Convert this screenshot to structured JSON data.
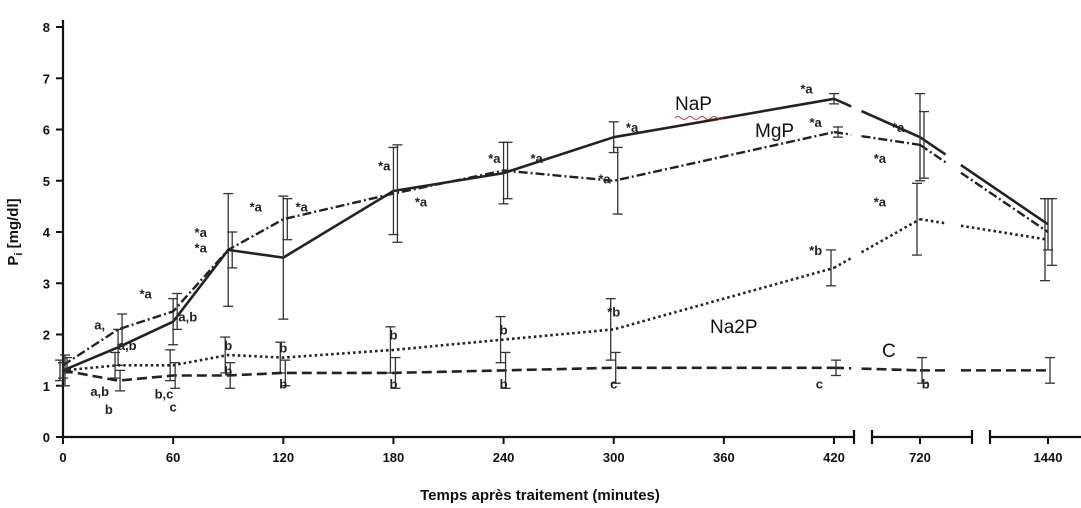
{
  "chart_data": {
    "type": "line",
    "xlabel": "Temps après traitement (minutes)",
    "ylabel_main": "P",
    "ylabel_sub": "i",
    "ylabel_rest": " [mg/dl]",
    "ylim": [
      0,
      8
    ],
    "y_ticks": [
      "0",
      "1",
      "2",
      "3",
      "4",
      "5",
      "6",
      "7",
      "8"
    ],
    "x_ticks": [
      "0",
      "60",
      "120",
      "180",
      "240",
      "300",
      "360",
      "420",
      "720",
      "1440"
    ],
    "axis_breaks": [
      "420-720",
      "720-1440"
    ],
    "grid": false,
    "legend": "inline labels",
    "series": [
      {
        "name": "NaP",
        "style": "solid",
        "x": [
          0,
          30,
          60,
          90,
          120,
          180,
          240,
          300,
          420,
          720,
          1440
        ],
        "y": [
          1.3,
          1.75,
          2.25,
          3.65,
          3.5,
          4.8,
          5.15,
          5.85,
          6.6,
          5.85,
          4.15
        ],
        "err": [
          0.15,
          0.35,
          0.45,
          1.1,
          1.2,
          0.85,
          0.6,
          0.3,
          0.1,
          0.85,
          0.5
        ]
      },
      {
        "name": "MgP",
        "style": "dash-dot",
        "x": [
          0,
          30,
          60,
          90,
          120,
          180,
          240,
          300,
          420,
          720,
          1440
        ],
        "y": [
          1.4,
          2.1,
          2.45,
          3.65,
          4.25,
          4.75,
          5.2,
          5.0,
          5.95,
          5.7,
          4.0
        ],
        "err": [
          0.15,
          0.3,
          0.35,
          0.35,
          0.4,
          0.95,
          0.55,
          0.65,
          0.1,
          0.65,
          0.65
        ]
      },
      {
        "name": "Na2P",
        "style": "dotted",
        "x": [
          0,
          30,
          60,
          90,
          120,
          180,
          240,
          300,
          420,
          720,
          1440
        ],
        "y": [
          1.3,
          1.4,
          1.4,
          1.6,
          1.55,
          1.7,
          1.9,
          2.1,
          3.3,
          4.25,
          3.85
        ],
        "err": [
          0.2,
          0.25,
          0.3,
          0.35,
          0.3,
          0.45,
          0.45,
          0.6,
          0.35,
          0.7,
          0.8
        ]
      },
      {
        "name": "C",
        "style": "dashed",
        "x": [
          0,
          30,
          60,
          90,
          120,
          180,
          240,
          300,
          420,
          720,
          1440
        ],
        "y": [
          1.3,
          1.1,
          1.2,
          1.2,
          1.25,
          1.25,
          1.3,
          1.35,
          1.35,
          1.3,
          1.3
        ],
        "err": [
          0.3,
          0.2,
          0.25,
          0.25,
          0.25,
          0.3,
          0.35,
          0.3,
          0.15,
          0.25,
          0.25
        ]
      }
    ],
    "annotations": [
      {
        "text": "*a",
        "x": 105,
        "y": 4.4
      },
      {
        "text": "*a",
        "x": 130,
        "y": 4.4
      },
      {
        "text": "*a",
        "x": 75,
        "y": 3.9
      },
      {
        "text": "*a",
        "x": 75,
        "y": 3.6
      },
      {
        "text": "*a",
        "x": 45,
        "y": 2.7
      },
      {
        "text": "a,",
        "x": 20,
        "y": 2.1
      },
      {
        "text": "a,b",
        "x": 68,
        "y": 2.25
      },
      {
        "text": "a,b",
        "x": 35,
        "y": 1.7
      },
      {
        "text": "*a",
        "x": 175,
        "y": 5.2
      },
      {
        "text": "*a",
        "x": 195,
        "y": 4.5
      },
      {
        "text": "*a",
        "x": 235,
        "y": 5.35
      },
      {
        "text": "*a",
        "x": 258,
        "y": 5.35
      },
      {
        "text": "*a",
        "x": 295,
        "y": 4.95
      },
      {
        "text": "*a",
        "x": 310,
        "y": 5.95
      },
      {
        "text": "*a",
        "x": 405,
        "y": 6.7
      },
      {
        "text": "*a",
        "x": 410,
        "y": 6.05
      },
      {
        "text": "*a",
        "x": 455,
        "y": 5.95
      },
      {
        "text": "*a",
        "x": 445,
        "y": 5.35
      },
      {
        "text": "*a",
        "x": 445,
        "y": 4.5
      },
      {
        "text": "*a",
        "x": 795,
        "y": 4.15
      },
      {
        "text": "*a",
        "x": 800,
        "y": 3.75
      },
      {
        "text": "*a",
        "x": 812,
        "y": 4.45
      },
      {
        "text": "*b",
        "x": 300,
        "y": 2.35
      },
      {
        "text": "*b",
        "x": 410,
        "y": 3.55
      },
      {
        "text": "b",
        "x": 90,
        "y": 1.7
      },
      {
        "text": "b",
        "x": 120,
        "y": 1.65
      },
      {
        "text": "b",
        "x": 180,
        "y": 1.9
      },
      {
        "text": "b",
        "x": 240,
        "y": 2.0
      },
      {
        "text": "b",
        "x": 90,
        "y": 1.2
      },
      {
        "text": "b",
        "x": 120,
        "y": 0.95
      },
      {
        "text": "b",
        "x": 180,
        "y": 0.95
      },
      {
        "text": "b",
        "x": 240,
        "y": 0.95
      },
      {
        "text": "b",
        "x": 470,
        "y": 0.95
      },
      {
        "text": "b",
        "x": 800,
        "y": 0.95
      },
      {
        "text": "a,b",
        "x": 20,
        "y": 0.8
      },
      {
        "text": "b",
        "x": 25,
        "y": 0.45
      },
      {
        "text": "b,c",
        "x": 55,
        "y": 0.75
      },
      {
        "text": "c",
        "x": 60,
        "y": 0.5
      },
      {
        "text": "c",
        "x": 300,
        "y": 0.95
      },
      {
        "text": "c",
        "x": 412,
        "y": 0.95
      }
    ]
  }
}
